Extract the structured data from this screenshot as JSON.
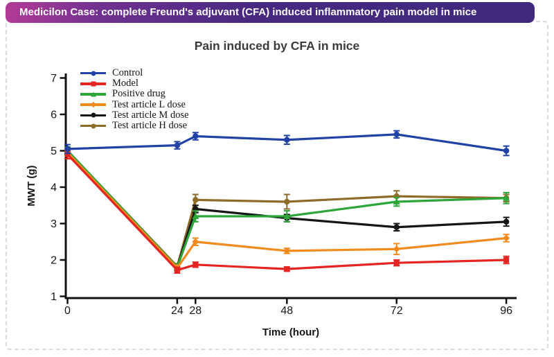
{
  "banner": {
    "text": "Medicilon Case: complete Freund's adjuvant (CFA) induced inflammatory pain model in mice",
    "bg_left": "#b23b96",
    "bg_right": "#3f2a7e",
    "text_color": "#ffffff"
  },
  "chart_data": {
    "type": "line",
    "title": "Pain induced by CFA in mice",
    "xlabel": "Time (hour)",
    "ylabel": "MWT (g)",
    "x": [
      0,
      24,
      28,
      48,
      72,
      96
    ],
    "x_ticks": [
      "0",
      "24",
      "28",
      "48",
      "72",
      "96"
    ],
    "y_ticks": [
      "1",
      "2",
      "3",
      "4",
      "5",
      "6",
      "7"
    ],
    "ylim": [
      1,
      7
    ],
    "grid": false,
    "legend_position": "top-left-inside",
    "error_bars": true,
    "series": [
      {
        "name": "Control",
        "color": "#2041a5",
        "marker": "circle",
        "values": [
          5.05,
          5.15,
          5.4,
          5.3,
          5.45,
          5.0
        ],
        "errors": [
          0.12,
          0.1,
          0.1,
          0.12,
          0.1,
          0.13
        ]
      },
      {
        "name": "Model",
        "color": "#e42522",
        "marker": "square",
        "values": [
          4.9,
          1.72,
          1.87,
          1.75,
          1.92,
          2.0
        ],
        "errors": [
          0.12,
          0.08,
          0.07,
          0.06,
          0.08,
          0.1
        ]
      },
      {
        "name": "Positive drug",
        "color": "#2ca638",
        "marker": "triangle",
        "values": [
          5.0,
          1.8,
          3.2,
          3.2,
          3.6,
          3.7
        ],
        "errors": [
          0.1,
          0.08,
          0.15,
          0.15,
          0.12,
          0.15
        ]
      },
      {
        "name": "Test article L dose",
        "color": "#f28a1d",
        "marker": "diamond",
        "values": [
          4.95,
          1.78,
          2.5,
          2.25,
          2.3,
          2.6
        ],
        "errors": [
          0.1,
          0.08,
          0.1,
          0.07,
          0.15,
          0.1
        ]
      },
      {
        "name": "Test article M dose",
        "color": "#151515",
        "marker": "circle",
        "values": [
          5.0,
          1.8,
          3.4,
          3.15,
          2.9,
          3.05
        ],
        "errors": [
          0.1,
          0.08,
          0.1,
          0.1,
          0.1,
          0.12
        ]
      },
      {
        "name": "Test article H dose",
        "color": "#8e6b28",
        "marker": "circle",
        "values": [
          5.0,
          1.82,
          3.65,
          3.6,
          3.75,
          3.7
        ],
        "errors": [
          0.1,
          0.08,
          0.15,
          0.2,
          0.15,
          0.1
        ]
      }
    ]
  }
}
